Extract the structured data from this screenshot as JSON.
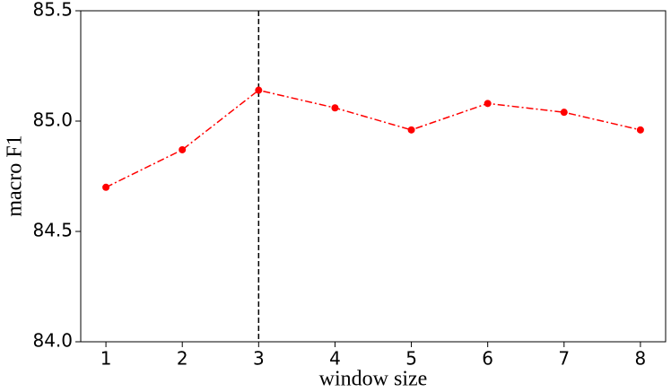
{
  "chart_data": {
    "type": "line",
    "x_label": "window size",
    "y_label": "macro F1",
    "x": [
      1,
      2,
      3,
      4,
      5,
      6,
      7,
      8
    ],
    "series": [
      {
        "name": "macro F1",
        "color": "#ff0000",
        "values": [
          84.7,
          84.87,
          85.14,
          85.06,
          84.96,
          85.08,
          85.04,
          84.96
        ]
      }
    ],
    "xlim": [
      0.67,
      8.33
    ],
    "xticks": [
      1,
      2,
      3,
      4,
      5,
      6,
      7,
      8
    ],
    "ylim": [
      84.0,
      85.5
    ],
    "yticks": [
      {
        "value": 84.0,
        "label": "84.0"
      },
      84.5,
      {
        "value": 85.0,
        "label": "85.0"
      },
      85.5
    ],
    "vline": 3,
    "vline_color": "#000000"
  }
}
